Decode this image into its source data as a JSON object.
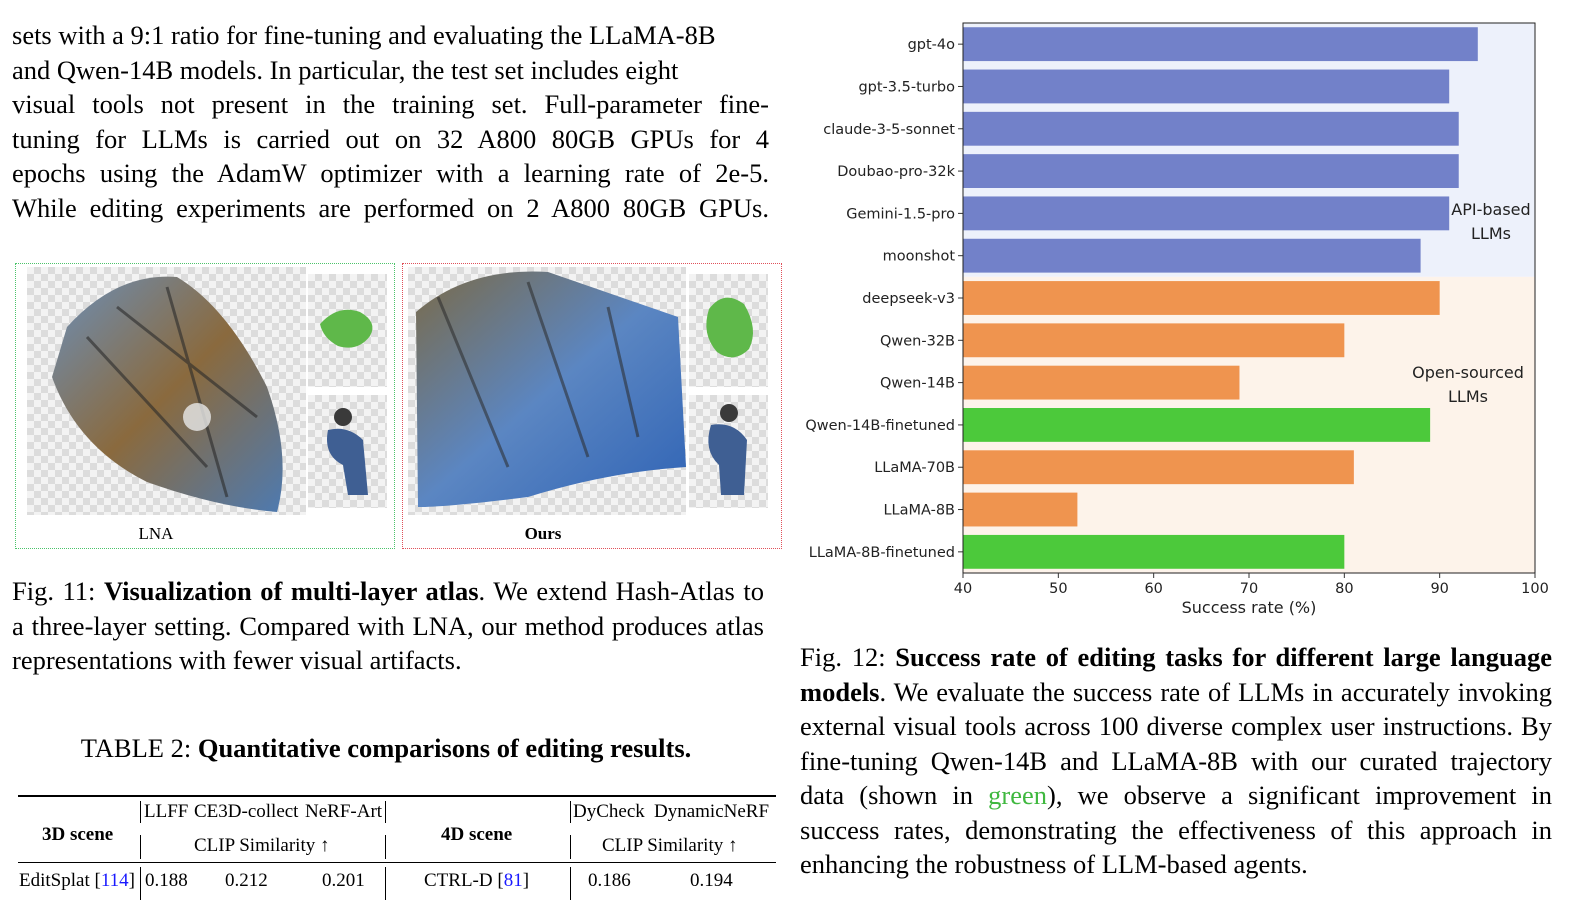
{
  "intro": {
    "lines": [
      "sets with a 9:1 ratio for fine-tuning and evaluating the LLaMA-8B",
      "and Qwen-14B models. In particular, the test set includes eight",
      "visual tools not present in the training set. Full-parameter fine-",
      "tuning for LLMs is carried out on 32 A800 80GB GPUs for 4",
      "epochs using the AdamW optimizer with a learning rate of 2e-5.",
      "While editing experiments are performed on 2 A800 80GB GPUs."
    ]
  },
  "fig11": {
    "label_left": "LNA",
    "label_right": "Ours",
    "caption_prefix": "Fig. 11: ",
    "caption_bold": "Visualization of multi-layer atlas",
    "caption_rest": ". We extend Hash-Atlas to a three-layer setting. Compared with LNA, our method produces atlas representations with fewer visual artifacts."
  },
  "table2": {
    "title_prefix": "TABLE 2: ",
    "title_bold": "Quantitative comparisons of editing results.",
    "col_3d": "3D scene",
    "col_3d_datasets": [
      "LLFF",
      "CE3D-collect",
      "NeRF-Art"
    ],
    "col_3d_metric": "CLIP Similarity ↑",
    "col_4d": "4D scene",
    "col_4d_datasets": [
      "DyCheck",
      "DynamicNeRF"
    ],
    "col_4d_metric": "CLIP Similarity ↑",
    "rows": [
      {
        "method3d": "EditSplat",
        "ref3d": "114",
        "vals3d": [
          "0.188",
          "0.212",
          "0.201"
        ],
        "method4d": "CTRL-D",
        "ref4d": "81",
        "vals4d": [
          "0.186",
          "0.194"
        ]
      }
    ]
  },
  "fig12": {
    "caption_prefix": "Fig. 12: ",
    "caption_bold": "Success rate of editing tasks for different large language models",
    "caption_part1": ". We evaluate the success rate of LLMs in accurately invoking external visual tools across 100 diverse complex user instructions. By fine-tuning Qwen-14B and LLaMA-8B with our curated trajectory data (shown in ",
    "caption_green": "green",
    "caption_part2": "), we observe a significant improvement in success rates, demonstrating the effectiveness of this approach in enhancing the robustness of LLM-based agents."
  },
  "chart_data": {
    "type": "bar",
    "orientation": "horizontal",
    "categories": [
      "gpt-4o",
      "gpt-3.5-turbo",
      "claude-3-5-sonnet",
      "Doubao-pro-32k",
      "Gemini-1.5-pro",
      "moonshot",
      "deepseek-v3",
      "Qwen-32B",
      "Qwen-14B",
      "Qwen-14B-finetuned",
      "LLaMA-70B",
      "LLaMA-8B",
      "LLaMA-8B-finetuned"
    ],
    "values": [
      94,
      91,
      92,
      92,
      91,
      88,
      90,
      80,
      69,
      89,
      81,
      52,
      80
    ],
    "groups": [
      "api",
      "api",
      "api",
      "api",
      "api",
      "api",
      "open",
      "open",
      "open",
      "finetuned",
      "open",
      "open",
      "finetuned"
    ],
    "group_colors": {
      "api": "#7281c9",
      "open": "#ef944f",
      "finetuned": "#4cc93b"
    },
    "region_colors": {
      "api": "#edf1fb",
      "open": "#fdf3ea"
    },
    "annotation_api": [
      "API-based",
      "LLMs"
    ],
    "annotation_open": [
      "Open-sourced",
      "LLMs"
    ],
    "annotation_colors": {
      "api": "#4d6fc0",
      "open": "#e0730f"
    },
    "xlabel": "Success rate (%)",
    "xlim": [
      40,
      100
    ],
    "xticks": [
      40,
      50,
      60,
      70,
      80,
      90,
      100
    ]
  }
}
